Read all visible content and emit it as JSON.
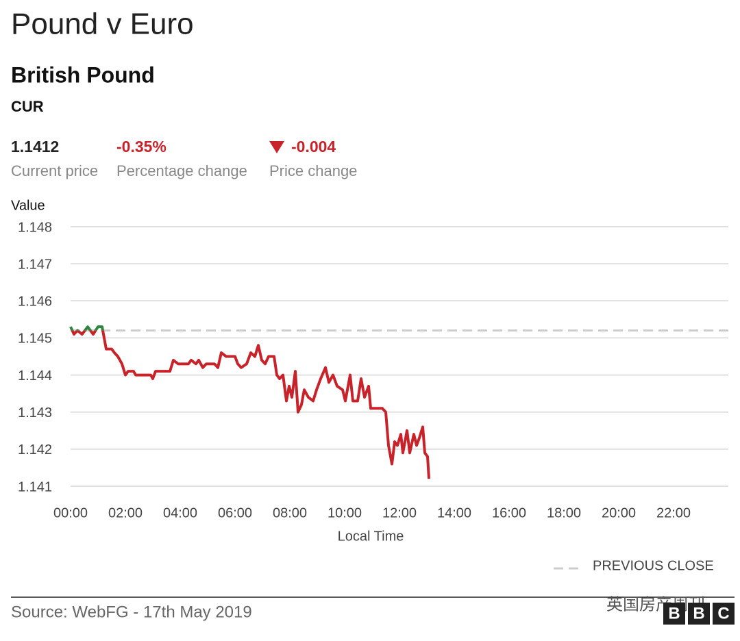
{
  "header": {
    "title": "Pound v Euro",
    "subtitle": "British Pound",
    "code": "CUR"
  },
  "stats": [
    {
      "value": "1.1412",
      "label": "Current price",
      "color": "#222222"
    },
    {
      "value": "-0.35%",
      "label": "Percentage change",
      "color": "#c8222a"
    },
    {
      "value": "-0.004",
      "label": "Price change",
      "color": "#c8222a"
    }
  ],
  "chart_data": {
    "type": "line",
    "y_label": "Value",
    "x_label": "Local Time",
    "xlim": [
      0,
      24
    ],
    "xticks": [
      {
        "value": 0,
        "label": "00:00"
      },
      {
        "value": 2,
        "label": "02:00"
      },
      {
        "value": 4,
        "label": "04:00"
      },
      {
        "value": 6,
        "label": "06:00"
      },
      {
        "value": 8,
        "label": "08:00"
      },
      {
        "value": 10,
        "label": "10:00"
      },
      {
        "value": 12,
        "label": "12:00"
      },
      {
        "value": 14,
        "label": "14:00"
      },
      {
        "value": 16,
        "label": "16:00"
      },
      {
        "value": 18,
        "label": "18:00"
      },
      {
        "value": 20,
        "label": "20:00"
      },
      {
        "value": 22,
        "label": "22:00"
      }
    ],
    "ylim": [
      1.141,
      1.148
    ],
    "yticks": [
      1.141,
      1.142,
      1.143,
      1.144,
      1.145,
      1.146,
      1.147,
      1.148
    ],
    "grid": true,
    "previous_close": 1.1452,
    "previous_close_label": "PREVIOUS CLOSE",
    "color_above": "#2e8540",
    "series": [
      {
        "name": "British Pound",
        "color": "#c8222a",
        "x": [
          0,
          0.125,
          0.25,
          0.42,
          0.625,
          0.825,
          1.0,
          1.15,
          1.3,
          1.5,
          1.6,
          1.725,
          1.875,
          2.0,
          2.1,
          2.3,
          2.375,
          2.925,
          3.0,
          3.1,
          3.625,
          3.75,
          3.925,
          4.3,
          4.4,
          4.575,
          4.675,
          4.825,
          4.95,
          5.1,
          5.25,
          5.375,
          5.5,
          5.675,
          6.0,
          6.1,
          6.225,
          6.425,
          6.575,
          6.725,
          6.85,
          6.975,
          7.1,
          7.225,
          7.425,
          7.525,
          7.625,
          7.75,
          7.875,
          7.975,
          8.075,
          8.2,
          8.3,
          8.425,
          8.525,
          8.675,
          8.85,
          8.975,
          9.125,
          9.3,
          9.425,
          9.575,
          9.725,
          9.925,
          10.025,
          10.2,
          10.3,
          10.475,
          10.6,
          10.725,
          10.875,
          10.95,
          11.375,
          11.5,
          11.6,
          11.725,
          11.825,
          11.925,
          12.05,
          12.125,
          12.275,
          12.375,
          12.525,
          12.625,
          12.725,
          12.85,
          12.925,
          13.025,
          13.075
        ],
        "values": [
          1.1453,
          1.1451,
          1.1452,
          1.1451,
          1.1453,
          1.1451,
          1.1453,
          1.1453,
          1.1447,
          1.1447,
          1.1446,
          1.1445,
          1.1443,
          1.144,
          1.1441,
          1.1441,
          1.144,
          1.144,
          1.1439,
          1.1441,
          1.1441,
          1.1444,
          1.1443,
          1.1443,
          1.1444,
          1.1443,
          1.1444,
          1.1442,
          1.1443,
          1.1443,
          1.1443,
          1.1442,
          1.1446,
          1.1445,
          1.1445,
          1.1443,
          1.1442,
          1.1443,
          1.1446,
          1.1445,
          1.1448,
          1.1444,
          1.1443,
          1.1445,
          1.1445,
          1.144,
          1.1439,
          1.144,
          1.1433,
          1.1437,
          1.1434,
          1.1441,
          1.143,
          1.1432,
          1.1436,
          1.1434,
          1.1433,
          1.1436,
          1.1439,
          1.1442,
          1.1438,
          1.144,
          1.1437,
          1.1436,
          1.1433,
          1.144,
          1.1433,
          1.1433,
          1.1439,
          1.1434,
          1.1437,
          1.1431,
          1.1431,
          1.143,
          1.1421,
          1.1416,
          1.1422,
          1.1421,
          1.1424,
          1.1419,
          1.1425,
          1.1419,
          1.1424,
          1.1421,
          1.1423,
          1.1426,
          1.1419,
          1.1418,
          1.1412
        ]
      }
    ]
  },
  "footer": {
    "source": "Source: WebFG - 17th May 2019",
    "watermark": "英国房产周刊",
    "logo": [
      "B",
      "B",
      "C"
    ]
  }
}
